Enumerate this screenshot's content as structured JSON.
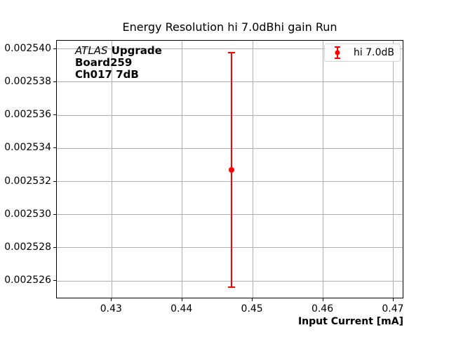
{
  "title": "Energy Resolution hi 7.0dBhi gain Run",
  "annotation": {
    "line1_italic": "ATLAS",
    "line1_bold": " Upgrade",
    "line2": "Board259",
    "line3": "Ch017 7dB"
  },
  "legend": {
    "label": "hi 7.0dB",
    "position": "upper right"
  },
  "colors": {
    "series": "#ff0000",
    "grid": "#b0b0b0",
    "spine": "#000000",
    "background": "#ffffff",
    "legend_border": "#d5d5d5"
  },
  "chart_data": {
    "type": "scatter",
    "title": "Energy Resolution hi 7.0dBhi gain Run",
    "xlabel": "Input Current [mA]",
    "ylabel": "",
    "grid": true,
    "legend_position": "upper right",
    "xlim": [
      0.4222,
      0.4715
    ],
    "ylim": [
      0.0025249,
      0.0025405
    ],
    "xticks": [
      {
        "v": 0.43,
        "label": "0.43"
      },
      {
        "v": 0.44,
        "label": "0.44"
      },
      {
        "v": 0.45,
        "label": "0.45"
      },
      {
        "v": 0.46,
        "label": "0.46"
      },
      {
        "v": 0.47,
        "label": "0.47"
      }
    ],
    "yticks": [
      {
        "v": 0.002526,
        "label": "0.002526"
      },
      {
        "v": 0.002528,
        "label": "0.002528"
      },
      {
        "v": 0.00253,
        "label": "0.002530"
      },
      {
        "v": 0.002532,
        "label": "0.002532"
      },
      {
        "v": 0.002534,
        "label": "0.002534"
      },
      {
        "v": 0.002536,
        "label": "0.002536"
      },
      {
        "v": 0.002538,
        "label": "0.002538"
      },
      {
        "v": 0.00254,
        "label": "0.002540"
      }
    ],
    "series": [
      {
        "name": "hi 7.0dB",
        "color": "#ff0000",
        "marker": "circle",
        "points": [
          {
            "x": 0.447,
            "y": 0.0025327,
            "yerr": 7.1e-06
          }
        ]
      }
    ]
  }
}
